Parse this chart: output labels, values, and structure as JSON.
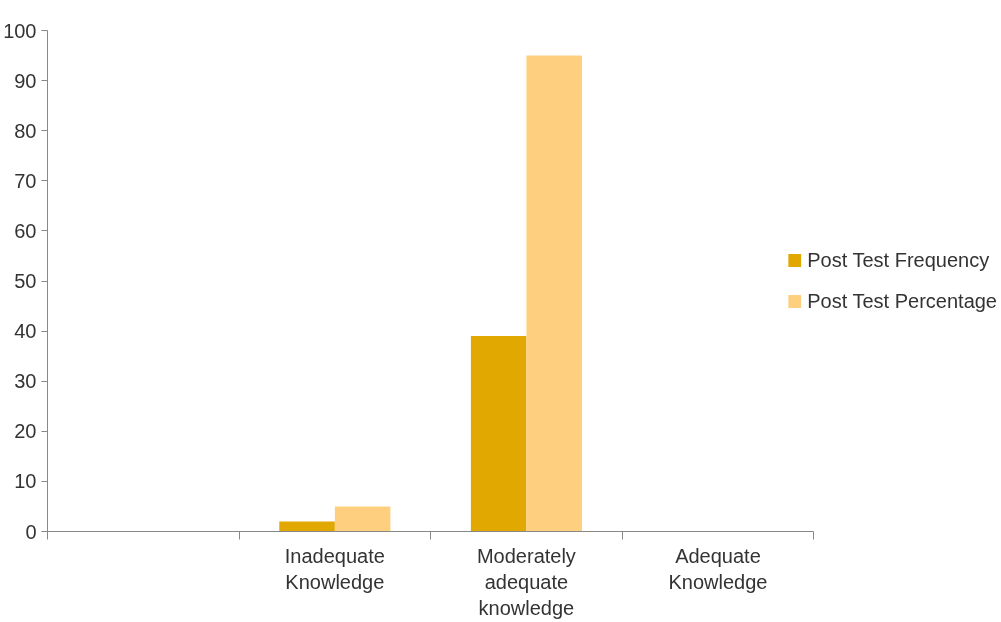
{
  "chart_data": {
    "type": "bar",
    "categories": [
      null,
      "Inadequate Knowledge",
      "Moderately adequate knowledge",
      "Adequate Knowledge"
    ],
    "series": [
      {
        "name": "Post Test Frequency",
        "color": "#e0a800",
        "values": [
          null,
          2,
          39,
          0
        ]
      },
      {
        "name": "Post Test Percentage",
        "color": "#ffcf80",
        "values": [
          null,
          5,
          95,
          0
        ]
      }
    ],
    "ylim": [
      0,
      100
    ],
    "yticks": [
      0,
      10,
      20,
      30,
      40,
      50,
      60,
      70,
      80,
      90,
      100
    ],
    "grid": false,
    "legend": "right"
  }
}
